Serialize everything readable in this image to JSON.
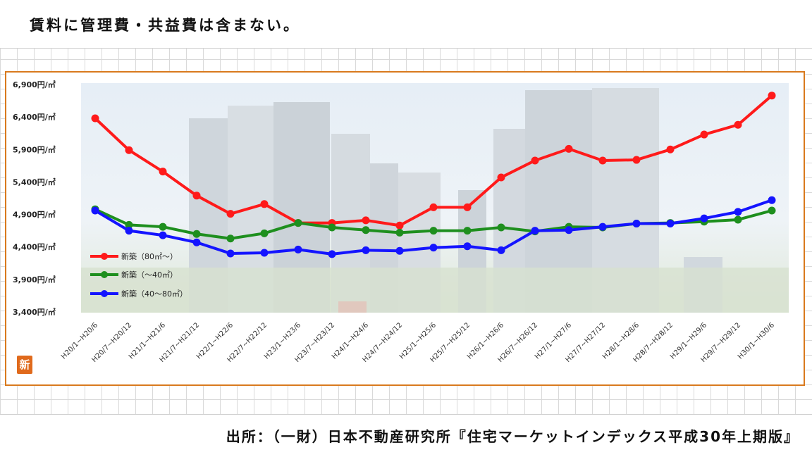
{
  "header": {
    "note": "賃料に管理費・共益費は含まない。"
  },
  "footer": {
    "source": "出所：（一財）日本不動産研究所『住宅マーケットインデックス平成30年上期版』"
  },
  "logo": {
    "text": "新"
  },
  "colors": {
    "frame": "#d97a1e",
    "red": "#ff1a1a",
    "green": "#1e8f1e",
    "blue": "#1414ff"
  },
  "chart_data": {
    "type": "line",
    "title": "",
    "xlabel": "",
    "ylabel": "",
    "ylim": [
      3400,
      6900
    ],
    "yticks": [
      "6,900円/㎡",
      "6,400円/㎡",
      "5,900円/㎡",
      "5,400円/㎡",
      "4,900円/㎡",
      "4,400円/㎡",
      "3,900円/㎡",
      "3,400円/㎡"
    ],
    "ytick_values": [
      6900,
      6400,
      5900,
      5400,
      4900,
      4400,
      3900,
      3400
    ],
    "categories": [
      "H20/1~H20/6",
      "H20/7~H20/12",
      "H21/1~H21/6",
      "H21/7~H21/12",
      "H22/1~H22/6",
      "H22/7~H22/12",
      "H23/1~H23/6",
      "H23/7~H23/12",
      "H24/1~H24/6",
      "H24/7~H24/12",
      "H25/1~H25/6",
      "H25/7~H25/12",
      "H26/1~H26/6",
      "H26/7~H26/12",
      "H27/1~H27/6",
      "H27/7~H27/12",
      "H28/1~H28/6",
      "H28/7~H28/12",
      "H29/1~H29/6",
      "H29/7~H29/12",
      "H30/1~H30/6"
    ],
    "legend_position": "lower-left",
    "grid": false,
    "series": [
      {
        "name": "新築（80㎡～）",
        "color": "#ff1a1a",
        "values": [
          6380,
          5890,
          5560,
          5190,
          4910,
          5060,
          4770,
          4770,
          4810,
          4730,
          5010,
          5010,
          5470,
          5730,
          5910,
          5730,
          5740,
          5900,
          6130,
          6280,
          6730
        ]
      },
      {
        "name": "新築（～40㎡）",
        "color": "#1e8f1e",
        "values": [
          4980,
          4740,
          4710,
          4600,
          4530,
          4610,
          4770,
          4700,
          4660,
          4620,
          4650,
          4650,
          4700,
          4640,
          4710,
          4700,
          4760,
          4770,
          4790,
          4820,
          4960
        ]
      },
      {
        "name": "新築（40～80㎡）",
        "color": "#1414ff",
        "values": [
          4960,
          4650,
          4580,
          4470,
          4300,
          4310,
          4360,
          4290,
          4350,
          4340,
          4390,
          4410,
          4350,
          4650,
          4660,
          4710,
          4760,
          4760,
          4840,
          4940,
          5120
        ]
      }
    ]
  }
}
